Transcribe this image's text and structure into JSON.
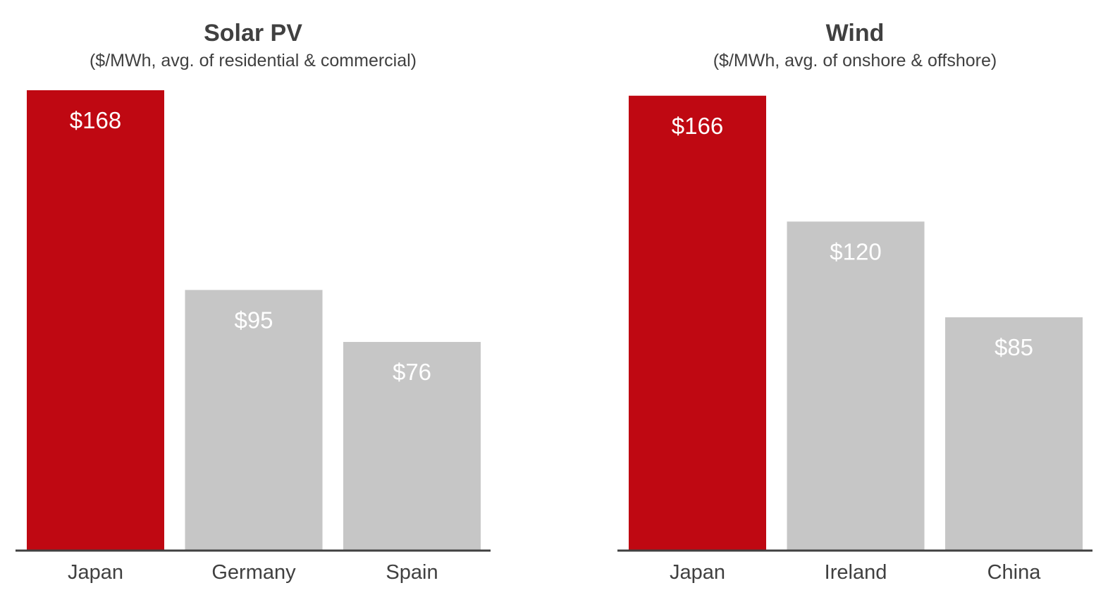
{
  "chart_data": [
    {
      "type": "bar",
      "title": "Solar PV",
      "subtitle": "($/MWh, avg. of residential & commercial)",
      "categories": [
        "Japan",
        "Germany",
        "Spain"
      ],
      "values": [
        168,
        95,
        76
      ],
      "value_labels": [
        "$168",
        "$95",
        "$76"
      ],
      "colors": [
        "#bf0812",
        "#c6c6c6",
        "#c6c6c6"
      ],
      "ylim": [
        0,
        168
      ]
    },
    {
      "type": "bar",
      "title": "Wind",
      "subtitle": "($/MWh, avg. of onshore & offshore)",
      "categories": [
        "Japan",
        "Ireland",
        "China"
      ],
      "values": [
        166,
        120,
        85
      ],
      "value_labels": [
        "$166",
        "$120",
        "$85"
      ],
      "colors": [
        "#bf0812",
        "#c6c6c6",
        "#c6c6c6"
      ],
      "ylim": [
        0,
        168
      ]
    }
  ],
  "colors": {
    "highlight": "#bf0812",
    "neutral": "#c6c6c6",
    "axis": "#404040"
  }
}
